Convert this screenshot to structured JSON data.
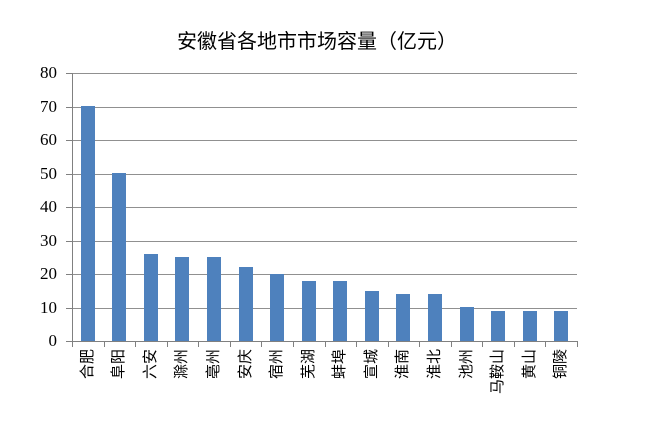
{
  "chart_data": {
    "type": "bar",
    "title": "安徽省各地市市场容量（亿元）",
    "categories": [
      "合肥",
      "阜阳",
      "六安",
      "滁州",
      "亳州",
      "安庆",
      "宿州",
      "芜湖",
      "蚌埠",
      "宣城",
      "淮南",
      "淮北",
      "池州",
      "马鞍山",
      "黄山",
      "铜陵"
    ],
    "values": [
      70,
      50,
      26,
      25,
      25,
      22,
      20,
      18,
      18,
      15,
      14,
      14,
      10,
      9,
      9,
      9
    ],
    "xlabel": "",
    "ylabel": "",
    "ylim": [
      0,
      80
    ],
    "ytick_step": 10,
    "grid": true,
    "legend": false,
    "bar_color": "#4E81BD",
    "gridline_color": "#909090",
    "axis_color": "#808080",
    "background_color": "#FFFFFF",
    "title_color": "#000000"
  }
}
